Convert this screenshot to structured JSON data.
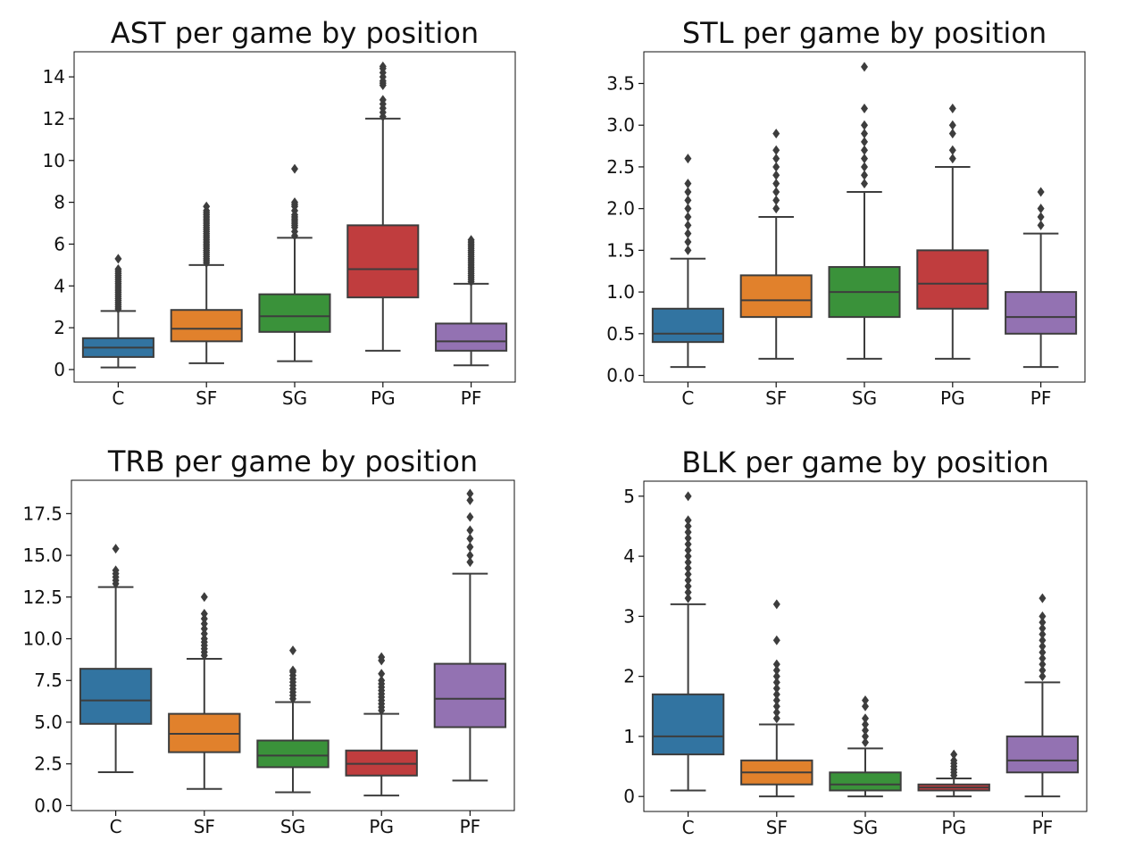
{
  "chart_data": [
    {
      "type": "box",
      "title": "AST per game by position",
      "categories": [
        "C",
        "SF",
        "SG",
        "PG",
        "PF"
      ],
      "colors": [
        "#3274a1",
        "#e1812c",
        "#3a923a",
        "#c03d3e",
        "#9372b2"
      ],
      "ylim": [
        -0.6,
        15.2
      ],
      "yticks": [
        0,
        2,
        4,
        6,
        8,
        10,
        12,
        14
      ],
      "ytick_labels": [
        "0",
        "2",
        "4",
        "6",
        "8",
        "10",
        "12",
        "14"
      ],
      "boxes": [
        {
          "min": 0.1,
          "q1": 0.6,
          "median": 1.05,
          "q3": 1.5,
          "max": 2.8,
          "fliers": [
            2.9,
            3.0,
            3.1,
            3.2,
            3.3,
            3.4,
            3.5,
            3.6,
            3.7,
            3.8,
            3.9,
            4.0,
            4.1,
            4.2,
            4.3,
            4.4,
            4.5,
            4.6,
            4.7,
            4.8,
            5.3
          ]
        },
        {
          "min": 0.3,
          "q1": 1.35,
          "median": 1.95,
          "q3": 2.85,
          "max": 5.0,
          "fliers": [
            5.1,
            5.2,
            5.3,
            5.4,
            5.5,
            5.6,
            5.7,
            5.8,
            5.9,
            6.0,
            6.1,
            6.2,
            6.3,
            6.4,
            6.5,
            6.6,
            6.7,
            6.8,
            6.9,
            7.0,
            7.1,
            7.2,
            7.3,
            7.4,
            7.5,
            7.6,
            7.8
          ]
        },
        {
          "min": 0.4,
          "q1": 1.8,
          "median": 2.55,
          "q3": 3.6,
          "max": 6.3,
          "fliers": [
            6.4,
            6.6,
            6.8,
            6.9,
            7.0,
            7.1,
            7.2,
            7.3,
            7.4,
            7.6,
            7.8,
            7.9,
            8.0,
            9.6
          ]
        },
        {
          "min": 0.9,
          "q1": 3.45,
          "median": 4.8,
          "q3": 6.9,
          "max": 12.0,
          "fliers": [
            12.1,
            12.3,
            12.5,
            12.7,
            12.9,
            13.6,
            13.7,
            13.8,
            14.0,
            14.2,
            14.4,
            14.5
          ]
        },
        {
          "min": 0.2,
          "q1": 0.9,
          "median": 1.35,
          "q3": 2.2,
          "max": 4.1,
          "fliers": [
            4.2,
            4.3,
            4.4,
            4.5,
            4.6,
            4.7,
            4.8,
            4.9,
            5.0,
            5.1,
            5.2,
            5.3,
            5.4,
            5.5,
            5.6,
            5.7,
            5.8,
            5.9,
            6.0,
            6.1,
            6.2
          ]
        }
      ]
    },
    {
      "type": "box",
      "title": "STL per game by position",
      "categories": [
        "C",
        "SF",
        "SG",
        "PG",
        "PF"
      ],
      "colors": [
        "#3274a1",
        "#e1812c",
        "#3a923a",
        "#c03d3e",
        "#9372b2"
      ],
      "ylim": [
        -0.08,
        3.88
      ],
      "yticks": [
        0.0,
        0.5,
        1.0,
        1.5,
        2.0,
        2.5,
        3.0,
        3.5
      ],
      "ytick_labels": [
        "0.0",
        "0.5",
        "1.0",
        "1.5",
        "2.0",
        "2.5",
        "3.0",
        "3.5"
      ],
      "boxes": [
        {
          "min": 0.1,
          "q1": 0.4,
          "median": 0.5,
          "q3": 0.8,
          "max": 1.4,
          "fliers": [
            1.5,
            1.6,
            1.7,
            1.8,
            1.9,
            2.0,
            2.1,
            2.2,
            2.3,
            2.6
          ]
        },
        {
          "min": 0.2,
          "q1": 0.7,
          "median": 0.9,
          "q3": 1.2,
          "max": 1.9,
          "fliers": [
            2.0,
            2.1,
            2.2,
            2.3,
            2.4,
            2.5,
            2.6,
            2.7,
            2.9
          ]
        },
        {
          "min": 0.2,
          "q1": 0.7,
          "median": 1.0,
          "q3": 1.3,
          "max": 2.2,
          "fliers": [
            2.3,
            2.4,
            2.5,
            2.6,
            2.7,
            2.8,
            2.9,
            3.0,
            3.2,
            3.7
          ]
        },
        {
          "min": 0.2,
          "q1": 0.8,
          "median": 1.1,
          "q3": 1.5,
          "max": 2.5,
          "fliers": [
            2.6,
            2.7,
            2.9,
            3.0,
            3.2
          ]
        },
        {
          "min": 0.1,
          "q1": 0.5,
          "median": 0.7,
          "q3": 1.0,
          "max": 1.7,
          "fliers": [
            1.8,
            1.9,
            2.0,
            2.2
          ]
        }
      ]
    },
    {
      "type": "box",
      "title": "TRB per game by position",
      "categories": [
        "C",
        "SF",
        "SG",
        "PG",
        "PF"
      ],
      "colors": [
        "#3274a1",
        "#e1812c",
        "#3a923a",
        "#c03d3e",
        "#9372b2"
      ],
      "ylim": [
        -0.3,
        19.5
      ],
      "yticks": [
        0.0,
        2.5,
        5.0,
        7.5,
        10.0,
        12.5,
        15.0,
        17.5
      ],
      "ytick_labels": [
        "0.0",
        "2.5",
        "5.0",
        "7.5",
        "10.0",
        "12.5",
        "15.0",
        "17.5"
      ],
      "boxes": [
        {
          "min": 2.0,
          "q1": 4.9,
          "median": 6.3,
          "q3": 8.2,
          "max": 13.1,
          "fliers": [
            13.3,
            13.5,
            13.7,
            13.9,
            14.1,
            15.4
          ]
        },
        {
          "min": 1.0,
          "q1": 3.2,
          "median": 4.3,
          "q3": 5.5,
          "max": 8.8,
          "fliers": [
            9.0,
            9.2,
            9.4,
            9.6,
            9.8,
            10.0,
            10.3,
            10.6,
            10.9,
            11.2,
            11.5,
            12.5
          ]
        },
        {
          "min": 0.8,
          "q1": 2.3,
          "median": 3.0,
          "q3": 3.9,
          "max": 6.2,
          "fliers": [
            6.4,
            6.6,
            6.8,
            7.0,
            7.2,
            7.4,
            7.6,
            7.8,
            8.0,
            8.1,
            9.3
          ]
        },
        {
          "min": 0.6,
          "q1": 1.8,
          "median": 2.5,
          "q3": 3.3,
          "max": 5.5,
          "fliers": [
            5.7,
            5.9,
            6.1,
            6.3,
            6.5,
            6.7,
            6.9,
            7.1,
            7.3,
            7.5,
            7.9,
            8.7,
            8.9
          ]
        },
        {
          "min": 1.5,
          "q1": 4.7,
          "median": 6.4,
          "q3": 8.5,
          "max": 13.9,
          "fliers": [
            14.6,
            15.0,
            15.5,
            16.0,
            16.5,
            17.3,
            18.3,
            18.7
          ]
        }
      ]
    },
    {
      "type": "box",
      "title": "BLK per game by position",
      "categories": [
        "C",
        "SF",
        "SG",
        "PG",
        "PF"
      ],
      "colors": [
        "#3274a1",
        "#e1812c",
        "#3a923a",
        "#c03d3e",
        "#9372b2"
      ],
      "ylim": [
        -0.25,
        5.25
      ],
      "yticks": [
        0,
        1,
        2,
        3,
        4,
        5
      ],
      "ytick_labels": [
        "0",
        "1",
        "2",
        "3",
        "4",
        "5"
      ],
      "boxes": [
        {
          "min": 0.1,
          "q1": 0.7,
          "median": 1.0,
          "q3": 1.7,
          "max": 3.2,
          "fliers": [
            3.3,
            3.4,
            3.5,
            3.6,
            3.7,
            3.8,
            3.9,
            4.0,
            4.1,
            4.2,
            4.3,
            4.4,
            4.5,
            4.6,
            5.0
          ]
        },
        {
          "min": 0.0,
          "q1": 0.2,
          "median": 0.4,
          "q3": 0.6,
          "max": 1.2,
          "fliers": [
            1.3,
            1.4,
            1.5,
            1.6,
            1.7,
            1.8,
            1.9,
            2.0,
            2.1,
            2.2,
            2.6,
            3.2
          ]
        },
        {
          "min": 0.0,
          "q1": 0.1,
          "median": 0.2,
          "q3": 0.4,
          "max": 0.8,
          "fliers": [
            0.9,
            1.0,
            1.1,
            1.2,
            1.3,
            1.5,
            1.6
          ]
        },
        {
          "min": 0.0,
          "q1": 0.1,
          "median": 0.15,
          "q3": 0.2,
          "max": 0.3,
          "fliers": [
            0.35,
            0.4,
            0.45,
            0.5,
            0.55,
            0.6,
            0.7
          ]
        },
        {
          "min": 0.0,
          "q1": 0.4,
          "median": 0.6,
          "q3": 1.0,
          "max": 1.9,
          "fliers": [
            2.0,
            2.1,
            2.2,
            2.3,
            2.4,
            2.5,
            2.6,
            2.7,
            2.8,
            2.9,
            3.0,
            3.3
          ]
        }
      ]
    }
  ]
}
